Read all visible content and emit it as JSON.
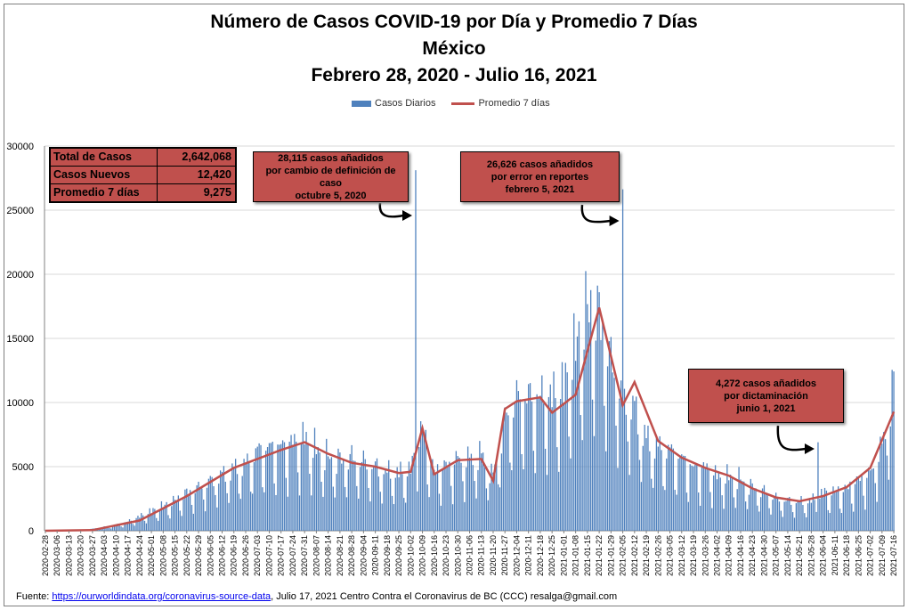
{
  "title": {
    "line1": "Número de  Casos  COVID-19 por Día y Promedio 7 Días",
    "line2": "México",
    "line3": "Febrero 28, 2020  - Julio 16, 2021"
  },
  "legend": {
    "bars": "Casos Diarios",
    "line": "Promedio 7 días"
  },
  "stats": [
    {
      "label": "Total de Casos",
      "value": "2,642,068"
    },
    {
      "label": "Casos Nuevos",
      "value": "12,420"
    },
    {
      "label": "Promedio 7 días",
      "value": "9,275"
    }
  ],
  "notes": [
    {
      "l1": "28,115 casos  añadidos",
      "l2": "por cambio de definición de caso",
      "l3": "octubre  5, 2020"
    },
    {
      "l1": "26,626 casos  añadidos",
      "l2": "por error en reportes",
      "l3": "febrero  5, 2021"
    },
    {
      "l1": "4,272 casos  añadidos",
      "l2": "por dictaminación",
      "l3": "junio 1, 2021"
    }
  ],
  "footer": {
    "prefix": "Fuente:  ",
    "link": "https://ourworldindata.org/coronavirus-source-data",
    "suffix": ",  Julio 17, 2021    Centro  Contra el Coronavirus de BC  (CCC) resalga@gmail.com"
  },
  "colors": {
    "bars": "#4f81bd",
    "line": "#c0504d",
    "grid": "#d9d9d9"
  },
  "chart_data": {
    "type": "bar",
    "title": "Número de  Casos  COVID-19 por Día y Promedio 7 Días",
    "ylim": [
      0,
      30000
    ],
    "yticks": [
      0,
      5000,
      10000,
      15000,
      20000,
      25000,
      30000
    ],
    "grid": true,
    "legend_position": "top",
    "x_start": "2020-02-28",
    "x_end": "2021-07-16",
    "xtick_labels": [
      "2020-02-28",
      "2020-03-06",
      "2020-03-13",
      "2020-03-20",
      "2020-03-27",
      "2020-04-03",
      "2020-04-10",
      "2020-04-17",
      "2020-04-24",
      "2020-05-01",
      "2020-05-08",
      "2020-05-15",
      "2020-05-22",
      "2020-05-29",
      "2020-06-05",
      "2020-06-12",
      "2020-06-19",
      "2020-06-26",
      "2020-07-03",
      "2020-07-10",
      "2020-07-17",
      "2020-07-24",
      "2020-07-31",
      "2020-08-07",
      "2020-08-14",
      "2020-08-21",
      "2020-08-28",
      "2020-09-04",
      "2020-09-11",
      "2020-09-18",
      "2020-09-25",
      "2020-10-02",
      "2020-10-09",
      "2020-10-16",
      "2020-10-23",
      "2020-10-30",
      "2020-11-06",
      "2020-11-13",
      "2020-11-20",
      "2020-11-27",
      "2020-12-04",
      "2020-12-11",
      "2020-12-18",
      "2020-12-25",
      "2021-01-01",
      "2021-01-08",
      "2021-01-15",
      "2021-01-22",
      "2021-01-29",
      "2021-02-05",
      "2021-02-12",
      "2021-02-19",
      "2021-02-26",
      "2021-03-05",
      "2021-03-12",
      "2021-03-19",
      "2021-03-26",
      "2021-04-02",
      "2021-04-09",
      "2021-04-16",
      "2021-04-23",
      "2021-04-30",
      "2021-05-07",
      "2021-05-14",
      "2021-05-21",
      "2021-05-28",
      "2021-06-04",
      "2021-06-11",
      "2021-06-18",
      "2021-06-25",
      "2021-07-02",
      "2021-07-09",
      "2021-07-16"
    ],
    "series": [
      {
        "name": "Casos Diarios",
        "type": "bar",
        "weekly_level": [
          0,
          5,
          20,
          60,
          150,
          300,
          450,
          700,
          1100,
          1500,
          1900,
          2300,
          2900,
          3300,
          3800,
          4300,
          4700,
          5100,
          6200,
          6400,
          6500,
          6800,
          7100,
          6200,
          5600,
          5400,
          5600,
          5300,
          4900,
          4500,
          4400,
          4700,
          7900,
          4500,
          5000,
          5500,
          5500,
          5800,
          4200,
          8500,
          10200,
          10300,
          10300,
          10300,
          11000,
          14000,
          17000,
          16500,
          13000,
          10500,
          9400,
          7000,
          6400,
          6200,
          5600,
          4800,
          4900,
          4200,
          4100,
          3900,
          3300,
          3000,
          2500,
          2300,
          2200,
          2300,
          2900,
          3000,
          3200,
          3900,
          4400,
          6500,
          11000
        ],
        "spikes": [
          {
            "x": "2020-10-05",
            "y": 28115
          },
          {
            "x": "2021-02-05",
            "y": 26626
          },
          {
            "x": "2021-06-01",
            "y": 6900
          }
        ],
        "last_value": 12420
      },
      {
        "name": "Promedio 7 días",
        "type": "line",
        "x": [
          "2020-02-28",
          "2020-03-27",
          "2020-04-24",
          "2020-05-22",
          "2020-06-19",
          "2020-07-17",
          "2020-07-31",
          "2020-08-14",
          "2020-08-28",
          "2020-09-11",
          "2020-09-25",
          "2020-10-02",
          "2020-10-09",
          "2020-10-16",
          "2020-10-30",
          "2020-11-13",
          "2020-11-20",
          "2020-11-27",
          "2020-12-04",
          "2020-12-18",
          "2020-12-25",
          "2021-01-08",
          "2021-01-22",
          "2021-02-05",
          "2021-02-12",
          "2021-02-26",
          "2021-03-12",
          "2021-03-26",
          "2021-04-09",
          "2021-04-23",
          "2021-05-07",
          "2021-05-21",
          "2021-06-04",
          "2021-06-18",
          "2021-07-02",
          "2021-07-16"
        ],
        "y": [
          0,
          50,
          800,
          2700,
          4900,
          6300,
          6900,
          6000,
          5300,
          5000,
          4500,
          4600,
          8000,
          4400,
          5500,
          5600,
          3900,
          9500,
          10100,
          10400,
          9200,
          10600,
          17400,
          9800,
          11600,
          7000,
          5700,
          4900,
          4300,
          3300,
          2600,
          2300,
          2700,
          3400,
          4900,
          9275
        ]
      }
    ]
  }
}
